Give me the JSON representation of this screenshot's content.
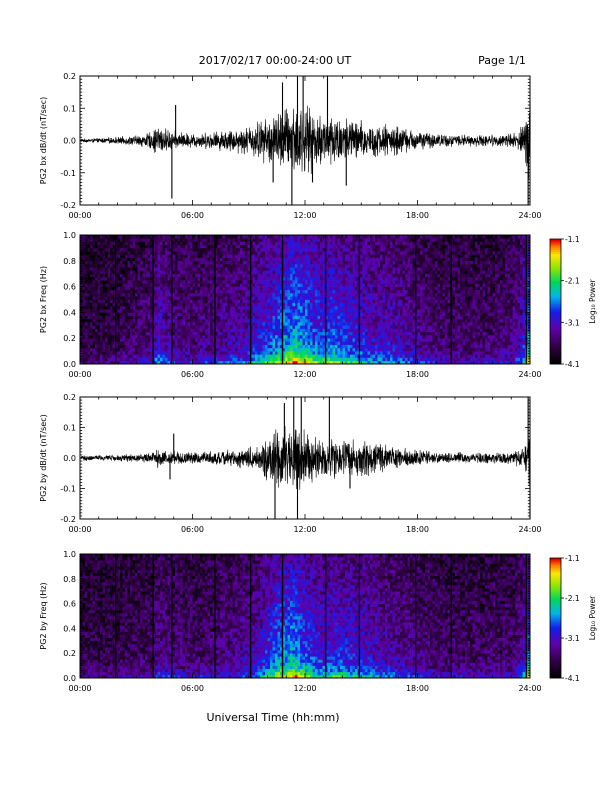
{
  "header": {
    "title": "2017/02/17  00:00-24:00 UT",
    "page": "Page 1/1"
  },
  "footer": {
    "xlabel": "Universal Time (hh:mm)"
  },
  "chart_data": [
    {
      "type": "line",
      "ylabel": "PG2 bx dB/dt (nT/sec)",
      "xlim": [
        0,
        24
      ],
      "ylim": [
        -0.2,
        0.2
      ],
      "x_ticks": [
        "00:00",
        "06:00",
        "12:00",
        "18:00",
        "24:00"
      ],
      "y_ticks": [
        "-0.2",
        "-0.1",
        "0.0",
        "0.1",
        "0.2"
      ],
      "envelope": {
        "hours": [
          0,
          1,
          2,
          3,
          3.8,
          4.2,
          4.6,
          5.2,
          6,
          7,
          8,
          9,
          9.5,
          10,
          10.5,
          11,
          11.5,
          12,
          12.5,
          13,
          13.5,
          14,
          14.5,
          15,
          15.5,
          16,
          16.5,
          17,
          17.5,
          18,
          18.5,
          19,
          20,
          21,
          22,
          23,
          23.6,
          24
        ],
        "amplitude": [
          0.006,
          0.008,
          0.012,
          0.018,
          0.03,
          0.06,
          0.04,
          0.03,
          0.025,
          0.03,
          0.04,
          0.05,
          0.07,
          0.08,
          0.1,
          0.12,
          0.14,
          0.12,
          0.1,
          0.09,
          0.1,
          0.085,
          0.08,
          0.07,
          0.06,
          0.055,
          0.06,
          0.05,
          0.04,
          0.035,
          0.028,
          0.025,
          0.02,
          0.02,
          0.02,
          0.025,
          0.05,
          0.15
        ]
      },
      "spikes": [
        {
          "t": 4.9,
          "v": -0.18
        },
        {
          "t": 5.1,
          "v": 0.11
        },
        {
          "t": 10.3,
          "v": -0.13
        },
        {
          "t": 10.8,
          "v": 0.18
        },
        {
          "t": 11.3,
          "v": -0.2
        },
        {
          "t": 11.6,
          "v": 0.2
        },
        {
          "t": 11.9,
          "v": 0.2
        },
        {
          "t": 12.4,
          "v": -0.13
        },
        {
          "t": 13.2,
          "v": 0.22
        },
        {
          "t": 14.2,
          "v": -0.14
        },
        {
          "t": 23.9,
          "v": -0.2
        },
        {
          "t": 24,
          "v": 0.12
        }
      ]
    },
    {
      "type": "heatmap",
      "ylabel": "PG2 bx Freq (Hz)",
      "xlim": [
        0,
        24
      ],
      "ylim": [
        0,
        1.0
      ],
      "x_ticks": [
        "00:00",
        "06:00",
        "12:00",
        "18:00",
        "24:00"
      ],
      "y_ticks": [
        "0.0",
        "0.2",
        "0.4",
        "0.6",
        "0.8",
        "1.0"
      ],
      "colorbar": {
        "label": "Log₁₀ Power",
        "ticks": [
          "-1.1",
          "-2.1",
          "-3.1",
          "-4.1"
        ],
        "range": [
          -4.1,
          -1.1
        ]
      },
      "gaps_hours": [
        1.9,
        3.9,
        4.9,
        7.2,
        9.1,
        10.8,
        13.1,
        14.9,
        17.9,
        19.8,
        23.8
      ]
    },
    {
      "type": "line",
      "ylabel": "PG2 by dB/dt (nT/sec)",
      "xlim": [
        0,
        24
      ],
      "ylim": [
        -0.2,
        0.2
      ],
      "x_ticks": [
        "00:00",
        "06:00",
        "12:00",
        "18:00",
        "24:00"
      ],
      "y_ticks": [
        "-0.2",
        "-0.1",
        "0.0",
        "0.1",
        "0.2"
      ],
      "envelope": {
        "hours": [
          0,
          1,
          2,
          3,
          3.8,
          4.2,
          4.6,
          5.2,
          6,
          7,
          8,
          9,
          9.5,
          10,
          10.5,
          11,
          11.5,
          12,
          12.5,
          13,
          13.5,
          14,
          14.5,
          15,
          15.5,
          16,
          16.5,
          17,
          17.5,
          18,
          18.5,
          19,
          20,
          21,
          22,
          23,
          23.6,
          24
        ],
        "amplitude": [
          0.01,
          0.01,
          0.012,
          0.015,
          0.02,
          0.035,
          0.03,
          0.025,
          0.02,
          0.025,
          0.03,
          0.04,
          0.05,
          0.08,
          0.11,
          0.12,
          0.13,
          0.1,
          0.08,
          0.07,
          0.08,
          0.075,
          0.07,
          0.065,
          0.06,
          0.05,
          0.045,
          0.04,
          0.035,
          0.03,
          0.025,
          0.02,
          0.02,
          0.02,
          0.02,
          0.02,
          0.04,
          0.12
        ]
      },
      "spikes": [
        {
          "t": 4.8,
          "v": -0.07
        },
        {
          "t": 5.0,
          "v": 0.08
        },
        {
          "t": 10.4,
          "v": -0.2
        },
        {
          "t": 10.9,
          "v": 0.18
        },
        {
          "t": 11.4,
          "v": 0.2
        },
        {
          "t": 11.6,
          "v": -0.2
        },
        {
          "t": 11.8,
          "v": 0.2
        },
        {
          "t": 13.3,
          "v": 0.22
        },
        {
          "t": 14.4,
          "v": -0.1
        },
        {
          "t": 23.9,
          "v": 0.2
        },
        {
          "t": 24,
          "v": -0.2
        }
      ]
    },
    {
      "type": "heatmap",
      "ylabel": "PG2 by Freq (Hz)",
      "xlim": [
        0,
        24
      ],
      "ylim": [
        0,
        1.0
      ],
      "x_ticks": [
        "00:00",
        "06:00",
        "12:00",
        "18:00",
        "24:00"
      ],
      "y_ticks": [
        "0.0",
        "0.2",
        "0.4",
        "0.6",
        "0.8",
        "1.0"
      ],
      "colorbar": {
        "label": "Log₁₀ Power",
        "ticks": [
          "-1.1",
          "-2.1",
          "-3.1",
          "-4.1"
        ],
        "range": [
          -4.1,
          -1.1
        ]
      },
      "gaps_hours": [
        1.9,
        3.9,
        4.9,
        7.2,
        9.1,
        10.8,
        13.1,
        14.9,
        17.9,
        19.8,
        23.8
      ]
    }
  ]
}
